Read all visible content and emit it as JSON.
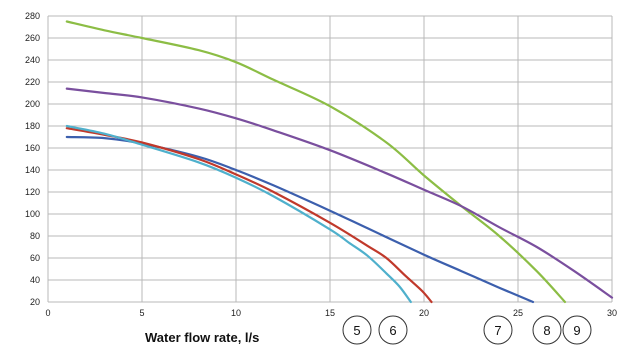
{
  "chart_data": {
    "type": "line",
    "title": "",
    "xlabel": "Water flow rate, l/s",
    "ylabel": "",
    "xlim": [
      0,
      30
    ],
    "ylim": [
      20,
      280
    ],
    "x_ticks": [
      0,
      5,
      10,
      15,
      20,
      25,
      30
    ],
    "y_ticks": [
      20,
      40,
      60,
      80,
      100,
      120,
      140,
      160,
      180,
      200,
      220,
      240,
      260,
      280
    ],
    "grid": true,
    "legend": "none",
    "series": [
      {
        "color": "#3c5fad",
        "points": [
          [
            1,
            170
          ],
          [
            3,
            169
          ],
          [
            5,
            164
          ],
          [
            8,
            152
          ],
          [
            10,
            140
          ],
          [
            12,
            126
          ],
          [
            15,
            103
          ],
          [
            17,
            87
          ],
          [
            20,
            63
          ],
          [
            22,
            48
          ],
          [
            24,
            33
          ],
          [
            25.8,
            20
          ]
        ]
      },
      {
        "color": "#c0392b",
        "points": [
          [
            1,
            178
          ],
          [
            3,
            172
          ],
          [
            5,
            165
          ],
          [
            8,
            150
          ],
          [
            10,
            136
          ],
          [
            12,
            120
          ],
          [
            15,
            92
          ],
          [
            17,
            71
          ],
          [
            18,
            60
          ],
          [
            19,
            44
          ],
          [
            19.9,
            30
          ],
          [
            20.4,
            20
          ]
        ]
      },
      {
        "color": "#4fb0cc",
        "points": [
          [
            1,
            180
          ],
          [
            3,
            173
          ],
          [
            5,
            163
          ],
          [
            8,
            147
          ],
          [
            10,
            133
          ],
          [
            12,
            116
          ],
          [
            15,
            86
          ],
          [
            16,
            74
          ],
          [
            17,
            62
          ],
          [
            18,
            46
          ],
          [
            18.7,
            34
          ],
          [
            19.3,
            20
          ]
        ]
      },
      {
        "color": "#8cbd45",
        "points": [
          [
            1,
            275
          ],
          [
            3,
            267
          ],
          [
            5,
            260
          ],
          [
            8,
            249
          ],
          [
            10,
            238
          ],
          [
            12,
            222
          ],
          [
            15,
            198
          ],
          [
            18,
            165
          ],
          [
            20,
            135
          ],
          [
            22,
            107
          ],
          [
            24,
            80
          ],
          [
            26,
            48
          ],
          [
            27.5,
            20
          ]
        ]
      },
      {
        "color": "#7a4f9e",
        "points": [
          [
            1,
            214
          ],
          [
            3,
            210
          ],
          [
            5,
            206
          ],
          [
            8,
            196
          ],
          [
            10,
            187
          ],
          [
            12,
            176
          ],
          [
            15,
            158
          ],
          [
            18,
            137
          ],
          [
            20,
            122
          ],
          [
            22,
            107
          ],
          [
            24,
            88
          ],
          [
            26,
            70
          ],
          [
            28,
            48
          ],
          [
            30,
            24
          ]
        ]
      }
    ],
    "markers": [
      "5",
      "6",
      "7",
      "8",
      "9"
    ]
  }
}
